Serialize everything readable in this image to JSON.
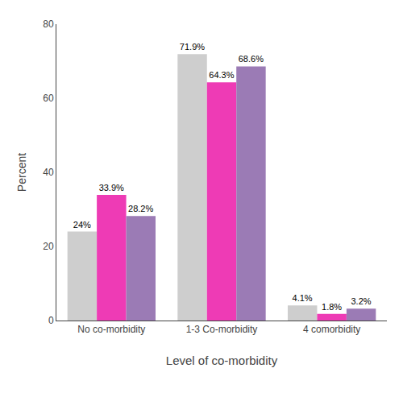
{
  "chart_data": {
    "type": "bar",
    "xlabel": "Level of co-morbidity",
    "ylabel": "Percent",
    "categories": [
      "No co-morbidity",
      "1-3 Co-morbidity",
      "4 comorbidity"
    ],
    "series": [
      {
        "color": "#CECECE",
        "values": [
          24.0,
          71.9,
          4.1
        ],
        "value_labels": [
          "24%",
          "71.9%",
          "4.1%"
        ]
      },
      {
        "color": "#EE3BB5",
        "values": [
          33.9,
          64.3,
          1.8
        ],
        "value_labels": [
          "33.9%",
          "64.3%",
          "1.8%"
        ]
      },
      {
        "color": "#9B7BB5",
        "values": [
          28.2,
          68.6,
          3.2
        ],
        "value_labels": [
          "28.2%",
          "68.6%",
          "3.2%"
        ]
      }
    ],
    "ylim": [
      0,
      80
    ],
    "yticks": [
      0,
      20,
      40,
      60,
      80
    ],
    "grid": false,
    "data_labels": true
  }
}
